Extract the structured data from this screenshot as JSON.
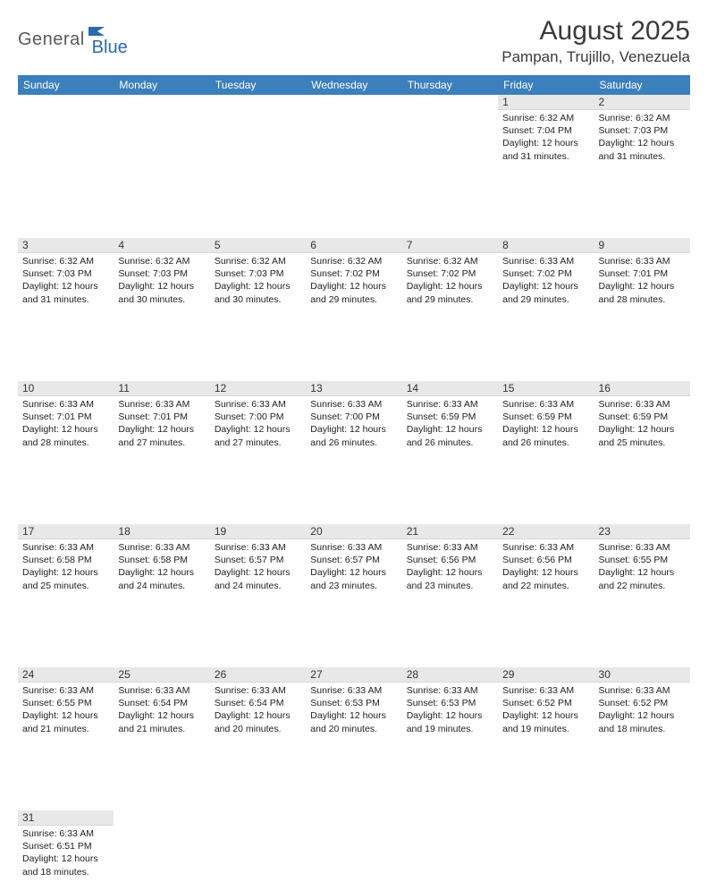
{
  "brand": {
    "text_gray": "General",
    "text_blue": "Blue"
  },
  "header": {
    "month_title": "August 2025",
    "location": "Pampan, Trujillo, Venezuela"
  },
  "colors": {
    "header_bg": "#3b7fbc",
    "header_text": "#ffffff",
    "daynum_bg": "#e8e8e8",
    "week_rule": "#3b7fbc",
    "brand_gray": "#5a5a5a",
    "brand_blue": "#2b6aa8"
  },
  "weekdays": [
    "Sunday",
    "Monday",
    "Tuesday",
    "Wednesday",
    "Thursday",
    "Friday",
    "Saturday"
  ],
  "weeks": [
    [
      null,
      null,
      null,
      null,
      null,
      {
        "n": "1",
        "sr": "6:32 AM",
        "ss": "7:04 PM",
        "dl": "12 hours and 31 minutes."
      },
      {
        "n": "2",
        "sr": "6:32 AM",
        "ss": "7:03 PM",
        "dl": "12 hours and 31 minutes."
      }
    ],
    [
      {
        "n": "3",
        "sr": "6:32 AM",
        "ss": "7:03 PM",
        "dl": "12 hours and 31 minutes."
      },
      {
        "n": "4",
        "sr": "6:32 AM",
        "ss": "7:03 PM",
        "dl": "12 hours and 30 minutes."
      },
      {
        "n": "5",
        "sr": "6:32 AM",
        "ss": "7:03 PM",
        "dl": "12 hours and 30 minutes."
      },
      {
        "n": "6",
        "sr": "6:32 AM",
        "ss": "7:02 PM",
        "dl": "12 hours and 29 minutes."
      },
      {
        "n": "7",
        "sr": "6:32 AM",
        "ss": "7:02 PM",
        "dl": "12 hours and 29 minutes."
      },
      {
        "n": "8",
        "sr": "6:33 AM",
        "ss": "7:02 PM",
        "dl": "12 hours and 29 minutes."
      },
      {
        "n": "9",
        "sr": "6:33 AM",
        "ss": "7:01 PM",
        "dl": "12 hours and 28 minutes."
      }
    ],
    [
      {
        "n": "10",
        "sr": "6:33 AM",
        "ss": "7:01 PM",
        "dl": "12 hours and 28 minutes."
      },
      {
        "n": "11",
        "sr": "6:33 AM",
        "ss": "7:01 PM",
        "dl": "12 hours and 27 minutes."
      },
      {
        "n": "12",
        "sr": "6:33 AM",
        "ss": "7:00 PM",
        "dl": "12 hours and 27 minutes."
      },
      {
        "n": "13",
        "sr": "6:33 AM",
        "ss": "7:00 PM",
        "dl": "12 hours and 26 minutes."
      },
      {
        "n": "14",
        "sr": "6:33 AM",
        "ss": "6:59 PM",
        "dl": "12 hours and 26 minutes."
      },
      {
        "n": "15",
        "sr": "6:33 AM",
        "ss": "6:59 PM",
        "dl": "12 hours and 26 minutes."
      },
      {
        "n": "16",
        "sr": "6:33 AM",
        "ss": "6:59 PM",
        "dl": "12 hours and 25 minutes."
      }
    ],
    [
      {
        "n": "17",
        "sr": "6:33 AM",
        "ss": "6:58 PM",
        "dl": "12 hours and 25 minutes."
      },
      {
        "n": "18",
        "sr": "6:33 AM",
        "ss": "6:58 PM",
        "dl": "12 hours and 24 minutes."
      },
      {
        "n": "19",
        "sr": "6:33 AM",
        "ss": "6:57 PM",
        "dl": "12 hours and 24 minutes."
      },
      {
        "n": "20",
        "sr": "6:33 AM",
        "ss": "6:57 PM",
        "dl": "12 hours and 23 minutes."
      },
      {
        "n": "21",
        "sr": "6:33 AM",
        "ss": "6:56 PM",
        "dl": "12 hours and 23 minutes."
      },
      {
        "n": "22",
        "sr": "6:33 AM",
        "ss": "6:56 PM",
        "dl": "12 hours and 22 minutes."
      },
      {
        "n": "23",
        "sr": "6:33 AM",
        "ss": "6:55 PM",
        "dl": "12 hours and 22 minutes."
      }
    ],
    [
      {
        "n": "24",
        "sr": "6:33 AM",
        "ss": "6:55 PM",
        "dl": "12 hours and 21 minutes."
      },
      {
        "n": "25",
        "sr": "6:33 AM",
        "ss": "6:54 PM",
        "dl": "12 hours and 21 minutes."
      },
      {
        "n": "26",
        "sr": "6:33 AM",
        "ss": "6:54 PM",
        "dl": "12 hours and 20 minutes."
      },
      {
        "n": "27",
        "sr": "6:33 AM",
        "ss": "6:53 PM",
        "dl": "12 hours and 20 minutes."
      },
      {
        "n": "28",
        "sr": "6:33 AM",
        "ss": "6:53 PM",
        "dl": "12 hours and 19 minutes."
      },
      {
        "n": "29",
        "sr": "6:33 AM",
        "ss": "6:52 PM",
        "dl": "12 hours and 19 minutes."
      },
      {
        "n": "30",
        "sr": "6:33 AM",
        "ss": "6:52 PM",
        "dl": "12 hours and 18 minutes."
      }
    ],
    [
      {
        "n": "31",
        "sr": "6:33 AM",
        "ss": "6:51 PM",
        "dl": "12 hours and 18 minutes."
      },
      null,
      null,
      null,
      null,
      null,
      null
    ]
  ],
  "labels": {
    "sunrise": "Sunrise:",
    "sunset": "Sunset:",
    "daylight": "Daylight:"
  }
}
